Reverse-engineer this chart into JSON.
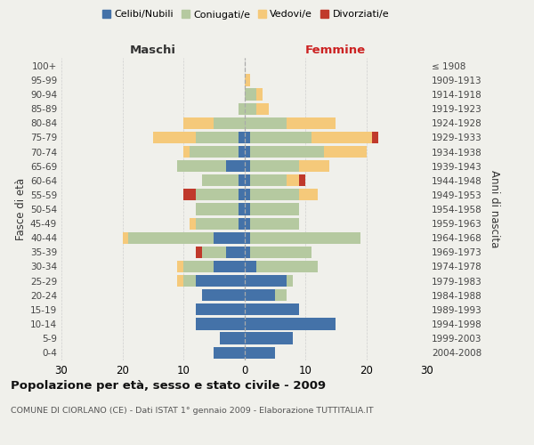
{
  "age_groups": [
    "0-4",
    "5-9",
    "10-14",
    "15-19",
    "20-24",
    "25-29",
    "30-34",
    "35-39",
    "40-44",
    "45-49",
    "50-54",
    "55-59",
    "60-64",
    "65-69",
    "70-74",
    "75-79",
    "80-84",
    "85-89",
    "90-94",
    "95-99",
    "100+"
  ],
  "birth_years": [
    "2004-2008",
    "1999-2003",
    "1994-1998",
    "1989-1993",
    "1984-1988",
    "1979-1983",
    "1974-1978",
    "1969-1973",
    "1964-1968",
    "1959-1963",
    "1954-1958",
    "1949-1953",
    "1944-1948",
    "1939-1943",
    "1934-1938",
    "1929-1933",
    "1924-1928",
    "1919-1923",
    "1914-1918",
    "1909-1913",
    "≤ 1908"
  ],
  "male_celibi": [
    5,
    4,
    8,
    8,
    7,
    8,
    5,
    3,
    5,
    1,
    1,
    1,
    1,
    3,
    1,
    1,
    0,
    0,
    0,
    0,
    0
  ],
  "male_coniugati": [
    0,
    0,
    0,
    0,
    0,
    2,
    5,
    4,
    14,
    7,
    7,
    7,
    6,
    8,
    8,
    7,
    5,
    1,
    0,
    0,
    0
  ],
  "male_vedovi": [
    0,
    0,
    0,
    0,
    0,
    1,
    1,
    0,
    1,
    1,
    0,
    0,
    0,
    0,
    1,
    7,
    5,
    0,
    0,
    0,
    0
  ],
  "male_divorziati": [
    0,
    0,
    0,
    0,
    0,
    0,
    0,
    1,
    0,
    0,
    0,
    2,
    0,
    0,
    0,
    0,
    0,
    0,
    0,
    0,
    0
  ],
  "female_nubili": [
    5,
    8,
    15,
    9,
    5,
    7,
    2,
    1,
    1,
    1,
    1,
    1,
    1,
    1,
    1,
    1,
    0,
    0,
    0,
    0,
    0
  ],
  "female_coniugate": [
    0,
    0,
    0,
    0,
    2,
    1,
    10,
    10,
    18,
    8,
    8,
    8,
    6,
    8,
    12,
    10,
    7,
    2,
    2,
    0,
    0
  ],
  "female_vedove": [
    0,
    0,
    0,
    0,
    0,
    0,
    0,
    0,
    0,
    0,
    0,
    3,
    2,
    5,
    7,
    10,
    8,
    2,
    1,
    1,
    0
  ],
  "female_divorziate": [
    0,
    0,
    0,
    0,
    0,
    0,
    0,
    0,
    0,
    0,
    0,
    0,
    1,
    0,
    0,
    1,
    0,
    0,
    0,
    0,
    0
  ],
  "color_celibi": "#4472a8",
  "color_coniugati": "#b5c9a0",
  "color_vedovi": "#f5c97a",
  "color_divorziati": "#c0392b",
  "title": "Popolazione per età, sesso e stato civile - 2009",
  "subtitle": "COMUNE DI CIORLANO (CE) - Dati ISTAT 1° gennaio 2009 - Elaborazione TUTTITALIA.IT",
  "label_maschi": "Maschi",
  "label_femmine": "Femmine",
  "label_fasce": "Fasce di età",
  "label_anni": "Anni di nascita",
  "legend_labels": [
    "Celibi/Nubili",
    "Coniugati/e",
    "Vedovi/e",
    "Divorziati/e"
  ],
  "bg_color": "#f0f0eb",
  "xlim": 30,
  "xticks": [
    -30,
    -20,
    -10,
    0,
    10,
    20,
    30
  ],
  "xtick_labels": [
    "30",
    "20",
    "10",
    "0",
    "10",
    "20",
    "30"
  ]
}
